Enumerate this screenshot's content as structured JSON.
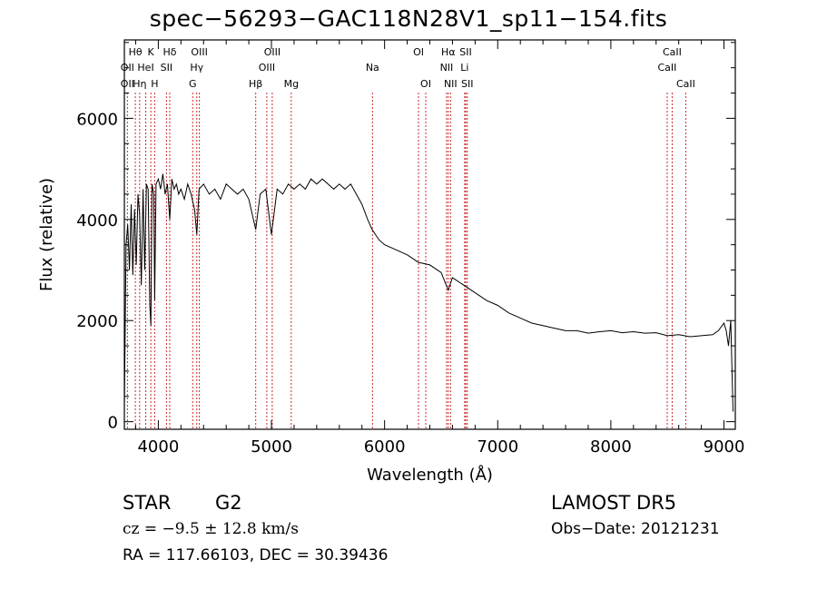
{
  "title": "spec−56293−GAC118N28V1_sp11−154.fits",
  "info": {
    "object_class": "STAR",
    "subclass": "G2",
    "survey": "LAMOST  DR5",
    "cz": "cz = −9.5 ± 12.8 km/s",
    "obs_date": "Obs−Date: 20121231",
    "radec": "RA = 117.66103, DEC =  30.39436"
  },
  "colors": {
    "spectrum": "#000000",
    "line_marker": "#cc2a2a",
    "axes": "#000000"
  },
  "chart_data": {
    "type": "line",
    "xlabel": "Wavelength (Å)",
    "ylabel": "Flux (relative)",
    "xlim": [
      3700,
      9100
    ],
    "ylim": [
      -150,
      7550
    ],
    "x_ticks": [
      4000,
      5000,
      6000,
      7000,
      8000,
      9000
    ],
    "y_ticks": [
      0,
      2000,
      4000,
      6000
    ],
    "series": [
      {
        "x": [
          3700,
          3715,
          3730,
          3745,
          3760,
          3775,
          3790,
          3805,
          3820,
          3835,
          3850,
          3865,
          3880,
          3895,
          3910,
          3925,
          3934,
          3945,
          3960,
          3968,
          3980,
          4000,
          4020,
          4040,
          4060,
          4080,
          4101,
          4120,
          4140,
          4160,
          4180,
          4200,
          4230,
          4260,
          4290,
          4320,
          4340,
          4360,
          4400,
          4450,
          4500,
          4550,
          4600,
          4650,
          4700,
          4750,
          4800,
          4861,
          4900,
          4950,
          5000,
          5050,
          5100,
          5150,
          5200,
          5250,
          5300,
          5350,
          5400,
          5450,
          5500,
          5550,
          5600,
          5650,
          5700,
          5750,
          5800,
          5850,
          5890,
          5950,
          6000,
          6100,
          6200,
          6300,
          6400,
          6500,
          6563,
          6600,
          6700,
          6800,
          6900,
          7000,
          7100,
          7200,
          7300,
          7400,
          7500,
          7600,
          7700,
          7800,
          7900,
          8000,
          8100,
          8200,
          8300,
          8400,
          8500,
          8600,
          8700,
          8800,
          8900,
          8950,
          9000,
          9020,
          9040,
          9060,
          9080
        ],
        "y": [
          300,
          3500,
          3900,
          3000,
          4300,
          2900,
          4200,
          3100,
          4500,
          4100,
          2700,
          4600,
          3000,
          4700,
          4600,
          2300,
          1900,
          4700,
          4500,
          2400,
          4700,
          4800,
          4600,
          4900,
          4500,
          4700,
          4000,
          4800,
          4600,
          4700,
          4500,
          4600,
          4400,
          4700,
          4500,
          4200,
          3700,
          4600,
          4700,
          4500,
          4600,
          4400,
          4700,
          4600,
          4500,
          4600,
          4400,
          3800,
          4500,
          4600,
          3700,
          4600,
          4500,
          4700,
          4600,
          4700,
          4600,
          4800,
          4700,
          4800,
          4700,
          4600,
          4700,
          4600,
          4700,
          4500,
          4300,
          4000,
          3800,
          3600,
          3500,
          3400,
          3300,
          3150,
          3100,
          2950,
          2600,
          2850,
          2700,
          2550,
          2400,
          2300,
          2150,
          2050,
          1950,
          1900,
          1850,
          1800,
          1800,
          1750,
          1780,
          1800,
          1760,
          1780,
          1750,
          1760,
          1700,
          1720,
          1680,
          1700,
          1720,
          1800,
          1950,
          1800,
          1500,
          2000,
          200
        ]
      }
    ],
    "spectral_lines": [
      {
        "label": "Hθ",
        "x": 3797,
        "row": 0
      },
      {
        "label": "OII",
        "x": 3727,
        "row": 1
      },
      {
        "label": "OII",
        "x": 3727,
        "row": 2
      },
      {
        "label": "K",
        "x": 3934,
        "row": 0
      },
      {
        "label": "HeI",
        "x": 3889,
        "row": 1
      },
      {
        "label": "Hη",
        "x": 3835,
        "row": 2
      },
      {
        "label": "Hδ",
        "x": 4101,
        "row": 0
      },
      {
        "label": "SII",
        "x": 4072,
        "row": 1
      },
      {
        "label": "H",
        "x": 3968,
        "row": 2
      },
      {
        "label": "OIII",
        "x": 4363,
        "row": 0
      },
      {
        "label": "Hγ",
        "x": 4340,
        "row": 1
      },
      {
        "label": "G",
        "x": 4304,
        "row": 2
      },
      {
        "label": "OIII",
        "x": 5007,
        "row": 0
      },
      {
        "label": "OIII",
        "x": 4959,
        "row": 1
      },
      {
        "label": "Hβ",
        "x": 4861,
        "row": 2
      },
      {
        "label": "Mg",
        "x": 5175,
        "row": 2
      },
      {
        "label": "Na",
        "x": 5893,
        "row": 1
      },
      {
        "label": "OI",
        "x": 6300,
        "row": 0
      },
      {
        "label": "OI",
        "x": 6364,
        "row": 2
      },
      {
        "label": "Hα",
        "x": 6563,
        "row": 0
      },
      {
        "label": "SII",
        "x": 6717,
        "row": 0
      },
      {
        "label": "NII",
        "x": 6548,
        "row": 1
      },
      {
        "label": "Li",
        "x": 6708,
        "row": 1
      },
      {
        "label": "NII",
        "x": 6583,
        "row": 2
      },
      {
        "label": "SII",
        "x": 6731,
        "row": 2
      },
      {
        "label": "CaII",
        "x": 8542,
        "row": 0
      },
      {
        "label": "CaII",
        "x": 8498,
        "row": 1
      },
      {
        "label": "CaII",
        "x": 8662,
        "row": 2
      }
    ]
  }
}
